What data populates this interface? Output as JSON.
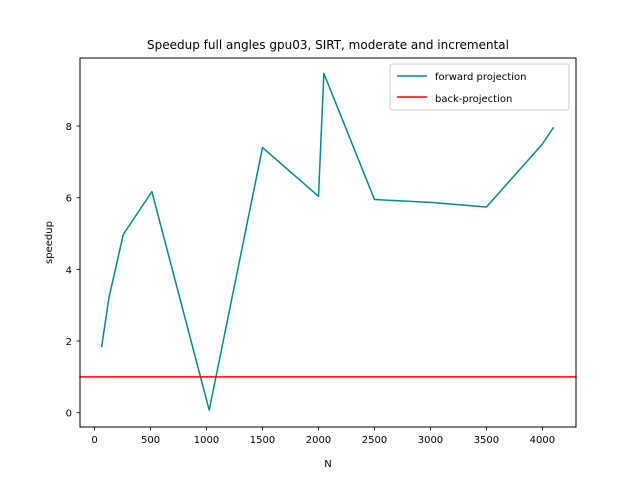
{
  "chart_data": {
    "type": "line",
    "title": "Speedup full angles gpu03, SIRT, moderate and incremental",
    "xlabel": "N",
    "ylabel": "speedup",
    "xlim": [
      -130,
      4300
    ],
    "ylim": [
      -0.4,
      9.9
    ],
    "xticks": [
      0,
      500,
      1000,
      1500,
      2000,
      2500,
      3000,
      3500,
      4000
    ],
    "yticks": [
      0,
      2,
      4,
      6,
      8
    ],
    "grid": false,
    "legend_position": "top-right",
    "series": [
      {
        "name": "forward projection",
        "color": "#008b8b",
        "x": [
          64,
          128,
          256,
          512,
          1024,
          1500,
          2000,
          2048,
          2500,
          3000,
          3500,
          4000,
          4096
        ],
        "y": [
          1.85,
          3.2,
          4.97,
          6.17,
          0.07,
          7.4,
          6.04,
          9.47,
          5.95,
          5.87,
          5.74,
          7.5,
          7.95
        ]
      },
      {
        "name": "back-projection",
        "color": "#ff0000",
        "x": [
          -130,
          4300
        ],
        "y": [
          1.0,
          1.0
        ]
      }
    ]
  }
}
